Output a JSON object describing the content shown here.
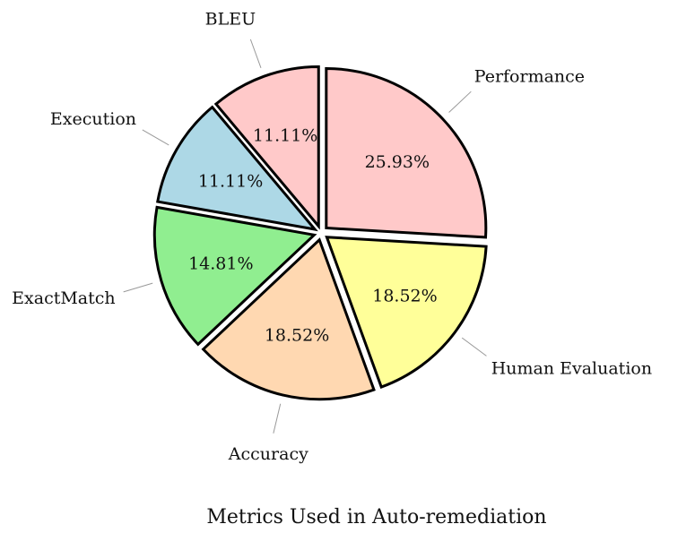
{
  "chart_data": {
    "type": "pie",
    "title": "Metrics Used in Auto-remediation",
    "categories": [
      "Performance",
      "Human Evaluation",
      "Accuracy",
      "ExactMatch",
      "Execution",
      "BLEU"
    ],
    "values": [
      25.93,
      18.52,
      18.52,
      14.81,
      11.11,
      11.11
    ],
    "value_labels": [
      "25.93%",
      "18.52%",
      "18.52%",
      "14.81%",
      "11.11%",
      "11.11%"
    ],
    "colors": [
      "#ffc9c9",
      "#ffff99",
      "#ffd8b1",
      "#90ee90",
      "#add8e6",
      "#ffc9c9"
    ],
    "start": "top",
    "direction": "clockwise",
    "exploded": true,
    "legend": "none"
  }
}
